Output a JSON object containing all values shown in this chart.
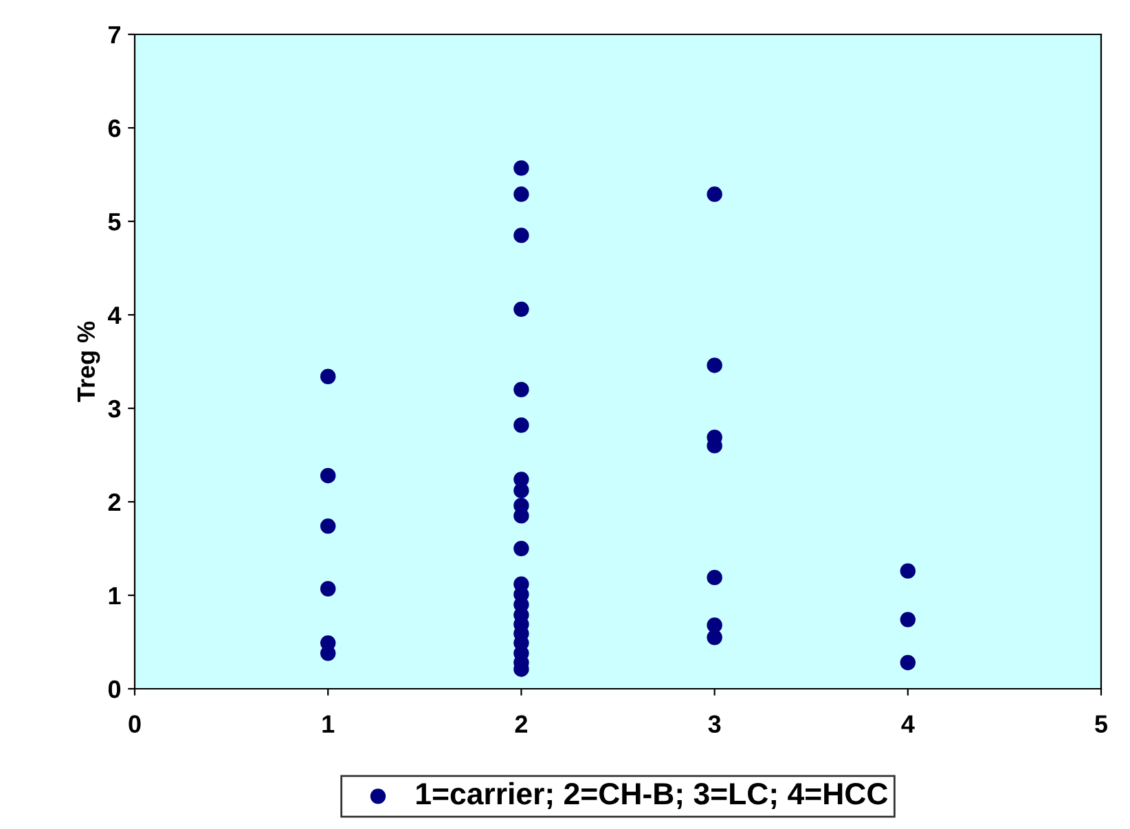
{
  "chart_data": {
    "type": "scatter",
    "ylabel": "Treg %",
    "xlim": [
      0,
      5
    ],
    "xticks": [
      0,
      1,
      2,
      3,
      4,
      5
    ],
    "ylim": [
      0,
      7
    ],
    "yticks": [
      0,
      1,
      2,
      3,
      4,
      5,
      6,
      7
    ],
    "grid": false,
    "legend": "bottom",
    "marker": "circle",
    "series": [
      {
        "name": "1=carrier; 2=CH-B; 3=LC; 4=HCC",
        "color": "#000080",
        "x": [
          1,
          1,
          1,
          1,
          1,
          1,
          2,
          2,
          2,
          2,
          2,
          2,
          2,
          2,
          2,
          2,
          2,
          2,
          2,
          2,
          2,
          2,
          2,
          2,
          2,
          2,
          2,
          3,
          3,
          3,
          3,
          3,
          3,
          3,
          4,
          4,
          4
        ],
        "values": [
          3.34,
          2.28,
          1.74,
          1.07,
          0.49,
          0.38,
          5.57,
          5.29,
          4.85,
          4.06,
          3.2,
          2.82,
          2.24,
          2.12,
          1.96,
          1.85,
          1.5,
          1.12,
          1.01,
          0.9,
          0.79,
          0.69,
          0.59,
          0.49,
          0.38,
          0.28,
          0.21,
          5.29,
          3.46,
          2.69,
          2.6,
          1.19,
          0.68,
          0.55,
          1.26,
          0.74,
          0.28
        ]
      }
    ]
  }
}
